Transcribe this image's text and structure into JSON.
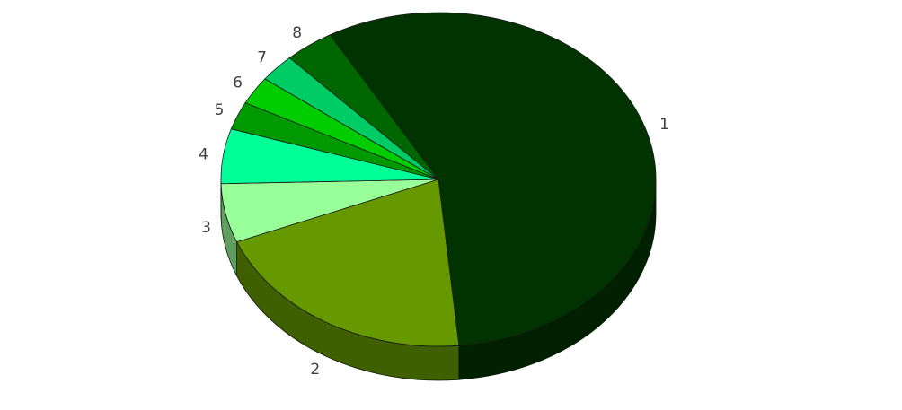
{
  "chart_data": {
    "type": "pie",
    "style": "3d",
    "title": "",
    "legend": "none",
    "categories": [
      "1",
      "2",
      "3",
      "4",
      "5",
      "6",
      "7",
      "8"
    ],
    "values": [
      56.8,
      20.4,
      5.7,
      5.3,
      2.7,
      2.7,
      2.7,
      3.7
    ],
    "colors": [
      "#003300",
      "#669900",
      "#99ff99",
      "#00ff99",
      "#009900",
      "#00cc00",
      "#00cc66",
      "#006600"
    ]
  }
}
